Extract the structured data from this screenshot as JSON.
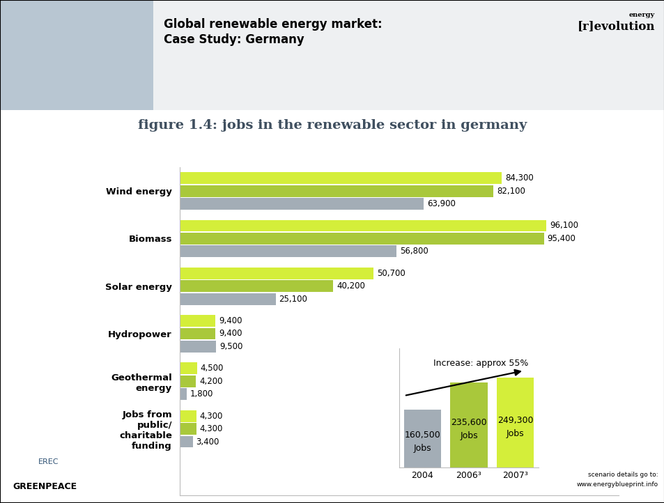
{
  "header": {
    "title_lines": [
      "Global renewable energy market:",
      "Case Study: Germany"
    ],
    "logo": [
      "energy",
      "[r]evolution"
    ],
    "footer_logos": [
      "EREC",
      "GREENPEACE"
    ],
    "footnote": [
      "scenario details go to:",
      "www.energyblueprint.info"
    ]
  },
  "chart_data": [
    {
      "type": "bar",
      "orientation": "horizontal",
      "title": "figure 1.4: jobs in the renewable sector in germany",
      "categories": [
        "Wind energy",
        "Biomass",
        "Solar energy",
        "Hydropower",
        "Geothermal\nenergy",
        "Jobs from\npublic/\ncharitable\nfunding"
      ],
      "series": [
        {
          "color": "#d4ee3a",
          "values": [
            84300,
            96100,
            50700,
            9400,
            4500,
            4300
          ],
          "value_labels": [
            "84,300",
            "96,100",
            "50,700",
            "9,400",
            "4,500",
            "4,300"
          ]
        },
        {
          "color": "#a9c83b",
          "values": [
            82100,
            95400,
            40200,
            9400,
            4200,
            4300
          ],
          "value_labels": [
            "82,100",
            "95,400",
            "40,200",
            "9,400",
            "4,200",
            "4,300"
          ]
        },
        {
          "color": "#a3adb6",
          "values": [
            63900,
            56800,
            25100,
            9500,
            1800,
            3400
          ],
          "value_labels": [
            "63,900",
            "56,800",
            "25,100",
            "9,500",
            "1,800",
            "3,400"
          ]
        }
      ],
      "xlim": [
        0,
        115000
      ],
      "xticks": [],
      "data_labels": true,
      "tick_labels": "y",
      "grid": false
    },
    {
      "type": "bar",
      "annotation": "Increase: approx 55%",
      "categories": [
        "2004",
        "2006³",
        "2007³"
      ],
      "values": [
        160500,
        235600,
        249300
      ],
      "value_labels": [
        "160,500 Jobs",
        "235,600 Jobs",
        "249,300 Jobs"
      ],
      "colors": [
        "#a3adb6",
        "#a9c83b",
        "#d4ee3a"
      ],
      "ylim": [
        0,
        330000
      ],
      "yticks": [],
      "data_labels": true,
      "tick_labels": "x",
      "grid": false
    }
  ]
}
